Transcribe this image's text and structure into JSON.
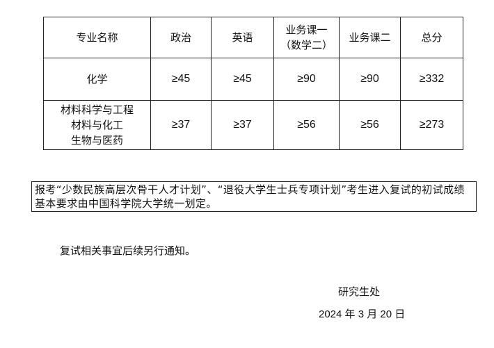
{
  "table": {
    "headers": [
      "专业名称",
      "政治",
      "英语",
      "业务课一\n（数学二）",
      "业务课二",
      "总分"
    ],
    "header_line1": "业务课一",
    "header_line2": "（数学二）",
    "rows": [
      {
        "majors": [
          "化学"
        ],
        "scores": [
          "≥45",
          "≥45",
          "≥90",
          "≥90",
          "≥332"
        ]
      },
      {
        "majors": [
          "材料科学与工程",
          "材料与化工",
          "生物与医药"
        ],
        "scores": [
          "≥37",
          "≥37",
          "≥56",
          "≥56",
          "≥273"
        ]
      }
    ]
  },
  "note": "报考“少数民族高层次骨干人才计划”、“退役大学生士兵专项计划”考生进入复试的初试成绩基本要求由中国科学院大学统一划定。",
  "notice": "复试相关事宜后续另行通知。",
  "signature": {
    "org": "研究生处",
    "date": "2024 年 3 月 20 日"
  }
}
